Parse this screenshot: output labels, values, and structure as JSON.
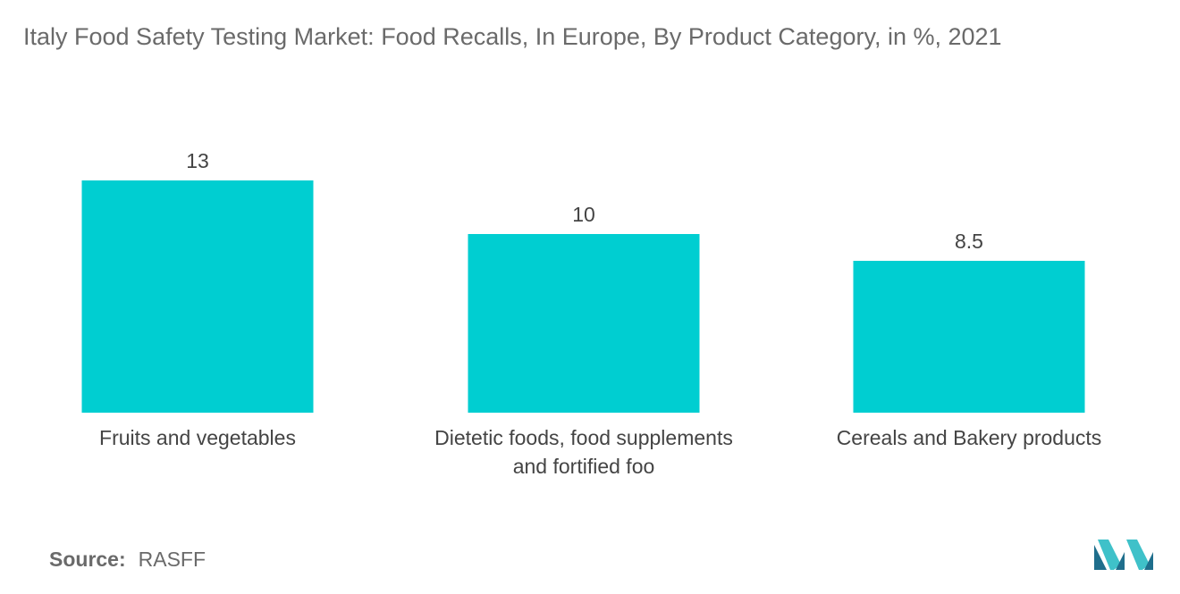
{
  "title": "Italy Food Safety Testing Market: Food Recalls, In Europe, By Product Category, in %, 2021",
  "source_label": "Source:",
  "source_value": "RASFF",
  "logo_icon": "mordor-intelligence-logo-icon",
  "colors": {
    "bar": "#00ced1",
    "logo_dark": "#1f6e8c",
    "logo_light": "#3fc1c9"
  },
  "chart_data": {
    "type": "bar",
    "categories": [
      [
        "Fruits and vegetables"
      ],
      [
        "Dietetic foods, food supplements",
        "and fortified foo"
      ],
      [
        "Cereals and Bakery products"
      ]
    ],
    "values": [
      13,
      10,
      8.5
    ],
    "value_labels": [
      "13",
      "10",
      "8.5"
    ],
    "grid": false,
    "legend": "none"
  }
}
